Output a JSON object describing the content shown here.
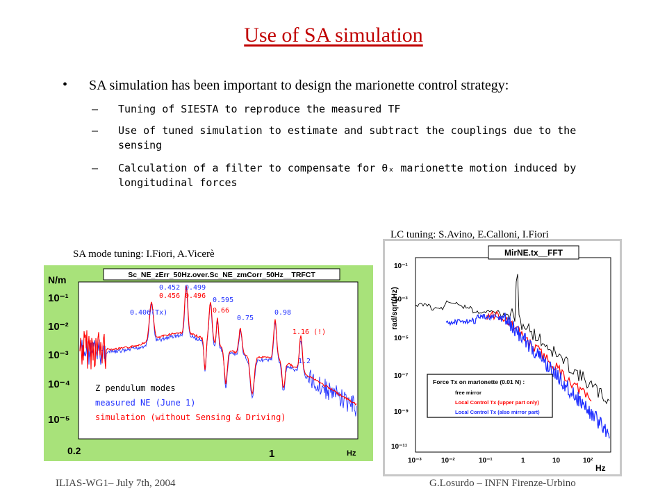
{
  "slide": {
    "title": "Use of SA simulation",
    "bullet": "SA simulation has been important to design the marionette control strategy:",
    "subitems": [
      {
        "dash": "–",
        "text": "Tuning of SIESTA to reproduce the measured TF"
      },
      {
        "dash": "–",
        "text": "Use of tuned simulation to estimate and subtract the couplings due to the sensing"
      },
      {
        "dash": "–",
        "text": "Calculation of a filter to compensate for θₓ marionette motion induced by longitudinal forces"
      }
    ],
    "caption_left": "SA mode tuning: I.Fiori, A.Vicerè",
    "caption_right": "LC tuning: S.Avino, E.Calloni, I.Fiori",
    "footer_left": "ILIAS-WG1– July 7th, 2004",
    "footer_right": "G.Losurdo – INFN Firenze-Urbino",
    "colors": {
      "title": "#c00000",
      "left_frame": "#a8e27a",
      "plot_red": "#ff0000",
      "plot_blue": "#1f2fff"
    }
  },
  "left_plot": {
    "title": "Sc_NE_zErr_50Hz.over.Sc_NE_zmCorr_50Hz__TRFCT",
    "ylabel": "N/m",
    "xlabel": "Hz",
    "yticks": [
      "10⁻¹",
      "10⁻²",
      "10⁻³",
      "10⁻⁴",
      "10⁻⁵"
    ],
    "xticks": [
      "0.2",
      "1"
    ],
    "annotations": [
      {
        "text": "0.452",
        "color": "blue"
      },
      {
        "text": "0.499",
        "color": "blue"
      },
      {
        "text": "0.456",
        "color": "red"
      },
      {
        "text": "0.496",
        "color": "red"
      },
      {
        "text": "0.406(Tx)",
        "color": "blue"
      },
      {
        "text": "0.595",
        "color": "blue"
      },
      {
        "text": "0.66",
        "color": "red"
      },
      {
        "text": "0.75",
        "color": "blue"
      },
      {
        "text": "0.98",
        "color": "blue"
      },
      {
        "text": "1.16 (!)",
        "color": "red"
      },
      {
        "text": "1.2",
        "color": "blue"
      }
    ],
    "legend": [
      {
        "text": "Z pendulum modes",
        "color": "black"
      },
      {
        "text": "measured NE (June 1)",
        "color": "blue"
      },
      {
        "text": "simulation (without Sensing & Driving)",
        "color": "red"
      }
    ]
  },
  "right_plot": {
    "title": "MirNE.tx__FFT",
    "ylabel": "rad/sqrt(Hz)",
    "xlabel": "Hz",
    "yticks": [
      "10⁻¹",
      "10⁻³",
      "10⁻⁵",
      "10⁻⁷",
      "10⁻⁹",
      "10⁻¹¹"
    ],
    "xticks": [
      "10⁻³",
      "10⁻²",
      "10⁻¹",
      "1",
      "10",
      "10²"
    ],
    "legend_title": "Force Tx on marionette (0.01 N) :",
    "legend": [
      {
        "text": "free mirror",
        "color": "black"
      },
      {
        "text": "Local Control Tx  (upper part only)",
        "color": "red"
      },
      {
        "text": "Local Control Tx (also mirror part)",
        "color": "blue"
      }
    ]
  }
}
